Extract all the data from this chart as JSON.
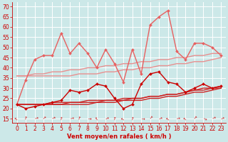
{
  "bg_color": "#cce8e8",
  "grid_color": "#b8d8d8",
  "xlabel": "Vent moyen/en rafales ( km/h )",
  "xlabel_color": "#cc0000",
  "ylabel_ticks": [
    15,
    20,
    25,
    30,
    35,
    40,
    45,
    50,
    55,
    60,
    65,
    70
  ],
  "xticks": [
    0,
    1,
    2,
    3,
    4,
    5,
    6,
    7,
    8,
    9,
    10,
    11,
    12,
    13,
    14,
    15,
    16,
    17,
    18,
    19,
    20,
    21,
    22,
    23
  ],
  "xlim": [
    -0.5,
    23.5
  ],
  "ylim": [
    13,
    72
  ],
  "series": [
    {
      "y": [
        36,
        36,
        36,
        36,
        36,
        36,
        36,
        37,
        37,
        37,
        38,
        38,
        39,
        39,
        40,
        40,
        41,
        41,
        42,
        42,
        43,
        43,
        44,
        45
      ],
      "color": "#e89090",
      "lw": 1.0,
      "marker": null,
      "zorder": 2
    },
    {
      "y": [
        36,
        36,
        37,
        37,
        38,
        38,
        39,
        39,
        40,
        40,
        41,
        41,
        42,
        42,
        43,
        43,
        44,
        44,
        45,
        45,
        46,
        46,
        47,
        47
      ],
      "color": "#e89090",
      "lw": 1.0,
      "marker": null,
      "zorder": 2
    },
    {
      "y": [
        22,
        22,
        22,
        22,
        22,
        22,
        22,
        22,
        22,
        23,
        23,
        23,
        24,
        24,
        24,
        25,
        25,
        26,
        26,
        27,
        28,
        28,
        29,
        30
      ],
      "color": "#cc2222",
      "lw": 1.0,
      "marker": null,
      "zorder": 3
    },
    {
      "y": [
        22,
        22,
        22,
        22,
        22,
        22,
        23,
        23,
        23,
        23,
        24,
        24,
        24,
        25,
        25,
        26,
        26,
        27,
        27,
        28,
        29,
        29,
        30,
        30
      ],
      "color": "#cc2222",
      "lw": 1.0,
      "marker": null,
      "zorder": 3
    },
    {
      "y": [
        22,
        22,
        22,
        22,
        23,
        23,
        23,
        23,
        24,
        24,
        24,
        24,
        25,
        25,
        25,
        26,
        26,
        27,
        27,
        28,
        29,
        30,
        30,
        31
      ],
      "color": "#cc2222",
      "lw": 1.0,
      "marker": null,
      "zorder": 3
    },
    {
      "y": [
        22,
        20,
        21,
        22,
        23,
        24,
        29,
        28,
        29,
        32,
        31,
        25,
        20,
        22,
        32,
        37,
        38,
        33,
        32,
        28,
        30,
        32,
        30,
        31
      ],
      "color": "#cc0000",
      "lw": 1.0,
      "marker": "D",
      "ms": 2.0,
      "zorder": 4
    },
    {
      "y": [
        22,
        34,
        44,
        46,
        46,
        57,
        47,
        52,
        47,
        40,
        49,
        42,
        33,
        49,
        37,
        61,
        65,
        68,
        48,
        44,
        52,
        52,
        50,
        46
      ],
      "color": "#e86060",
      "lw": 1.0,
      "marker": "D",
      "ms": 2.0,
      "zorder": 3
    }
  ],
  "tick_color": "#cc0000",
  "tick_label_color": "#cc0000",
  "tick_fontsize": 5.5,
  "xlabel_fontsize": 6.0,
  "xlabel_fontweight": "bold"
}
